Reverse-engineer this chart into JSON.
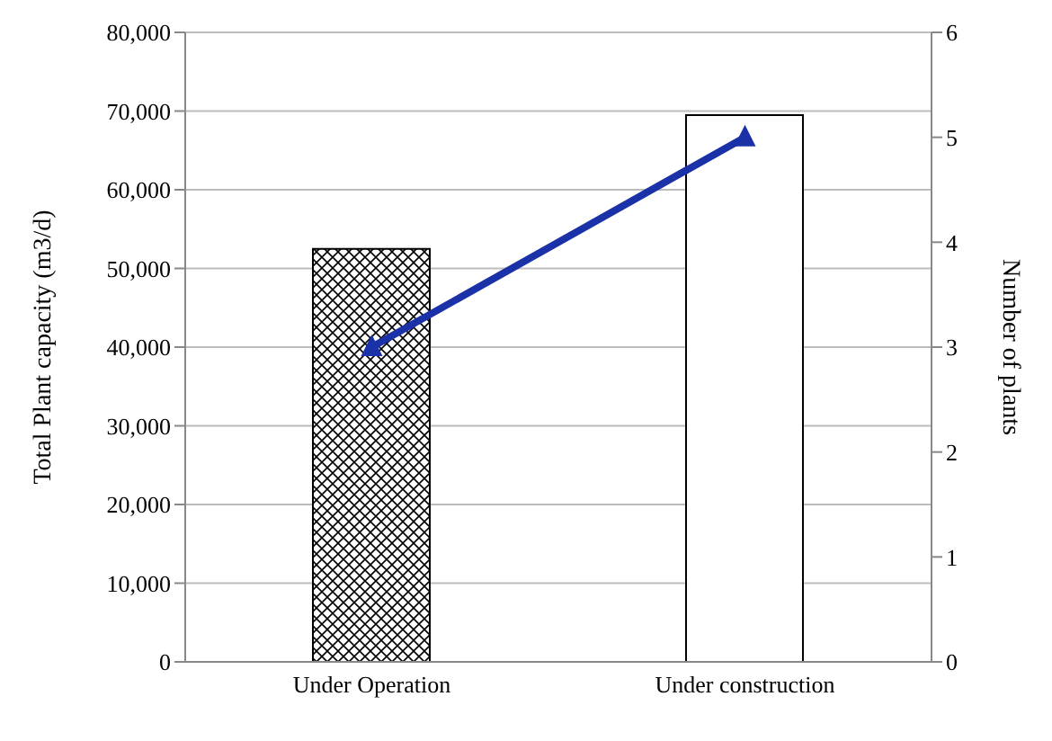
{
  "chart_data": {
    "type": "bar",
    "categories": [
      "Under Operation",
      "Under construction"
    ],
    "series": [
      {
        "values": [
          52500,
          69500
        ],
        "colors": [
          "#000000",
          "#ffffff"
        ]
      },
      {
        "type": "line",
        "axis": "y2",
        "values": [
          3,
          5
        ],
        "color": "#1a31a8",
        "marker": "triangle"
      }
    ],
    "ylabel": "Total Plant capacity (m3/d)",
    "y2label": "Number of plants",
    "ylim": [
      0,
      80000
    ],
    "yticks": [
      0,
      {
        "value": 10000,
        "label": "10,000"
      },
      {
        "value": 20000,
        "label": "20,000"
      },
      {
        "value": 30000,
        "label": "30,000"
      },
      {
        "value": 40000,
        "label": "40,000"
      },
      {
        "value": 50000,
        "label": "50,000"
      },
      {
        "value": 60000,
        "label": "60,000"
      },
      {
        "value": 70000,
        "label": "70,000"
      },
      {
        "value": 80000,
        "label": "80,000"
      }
    ],
    "y2lim": [
      0,
      6
    ],
    "y2ticks": [
      0,
      1,
      2,
      3,
      4,
      5,
      6
    ],
    "grid": "y",
    "legend": false
  }
}
